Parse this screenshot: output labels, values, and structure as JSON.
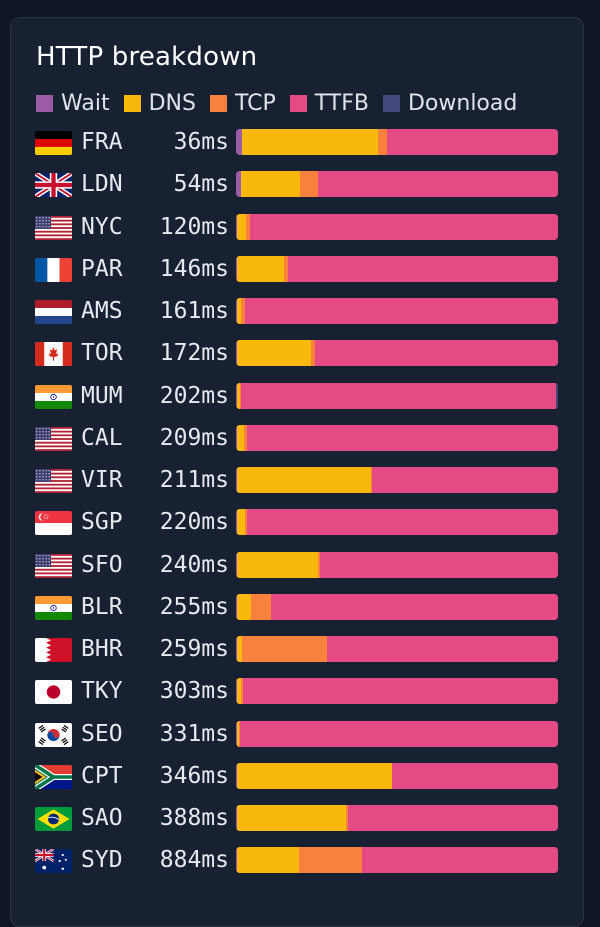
{
  "chart_data": {
    "type": "bar",
    "title": "HTTP breakdown",
    "orientation": "horizontal",
    "stacked": true,
    "normalized": true,
    "legend_position": "top",
    "series": [
      {
        "name": "Wait",
        "color": "#9b5ba6"
      },
      {
        "name": "DNS",
        "color": "#f8b80c"
      },
      {
        "name": "TCP",
        "color": "#f9813e"
      },
      {
        "name": "TTFB",
        "color": "#e44a84"
      },
      {
        "name": "Download",
        "color": "#45487f"
      }
    ],
    "rows": [
      {
        "city": "FRA",
        "time_label": "36ms",
        "total_ms": 36,
        "flag": "de",
        "shares": [
          0.02,
          0.42,
          0.03,
          0.53,
          0.0
        ]
      },
      {
        "city": "LDN",
        "time_label": "54ms",
        "total_ms": 54,
        "flag": "gb",
        "shares": [
          0.015,
          0.185,
          0.055,
          0.745,
          0.0
        ]
      },
      {
        "city": "NYC",
        "time_label": "120ms",
        "total_ms": 120,
        "flag": "us",
        "shares": [
          0.004,
          0.026,
          0.012,
          0.958,
          0.0
        ]
      },
      {
        "city": "PAR",
        "time_label": "146ms",
        "total_ms": 146,
        "flag": "fr",
        "shares": [
          0.004,
          0.146,
          0.011,
          0.839,
          0.0
        ]
      },
      {
        "city": "AMS",
        "time_label": "161ms",
        "total_ms": 161,
        "flag": "nl",
        "shares": [
          0.004,
          0.012,
          0.011,
          0.973,
          0.0
        ]
      },
      {
        "city": "TOR",
        "time_label": "172ms",
        "total_ms": 172,
        "flag": "ca",
        "shares": [
          0.004,
          0.23,
          0.012,
          0.754,
          0.0
        ]
      },
      {
        "city": "MUM",
        "time_label": "202ms",
        "total_ms": 202,
        "flag": "in",
        "shares": [
          0.004,
          0.007,
          0.005,
          0.978,
          0.006
        ]
      },
      {
        "city": "CAL",
        "time_label": "209ms",
        "total_ms": 209,
        "flag": "us",
        "shares": [
          0.004,
          0.022,
          0.008,
          0.966,
          0.0
        ]
      },
      {
        "city": "VIR",
        "time_label": "211ms",
        "total_ms": 211,
        "flag": "us",
        "shares": [
          0.004,
          0.416,
          0.003,
          0.577,
          0.0
        ]
      },
      {
        "city": "SGP",
        "time_label": "220ms",
        "total_ms": 220,
        "flag": "sg",
        "shares": [
          0.004,
          0.025,
          0.006,
          0.965,
          0.0
        ]
      },
      {
        "city": "SFO",
        "time_label": "240ms",
        "total_ms": 240,
        "flag": "us",
        "shares": [
          0.004,
          0.25,
          0.006,
          0.74,
          0.0
        ]
      },
      {
        "city": "BLR",
        "time_label": "255ms",
        "total_ms": 255,
        "flag": "in",
        "shares": [
          0.004,
          0.042,
          0.063,
          0.891,
          0.0
        ]
      },
      {
        "city": "BHR",
        "time_label": "259ms",
        "total_ms": 259,
        "flag": "bh",
        "shares": [
          0.004,
          0.016,
          0.264,
          0.716,
          0.0
        ]
      },
      {
        "city": "TKY",
        "time_label": "303ms",
        "total_ms": 303,
        "flag": "jp",
        "shares": [
          0.004,
          0.012,
          0.006,
          0.978,
          0.0
        ]
      },
      {
        "city": "SEO",
        "time_label": "331ms",
        "total_ms": 331,
        "flag": "kr",
        "shares": [
          0.004,
          0.004,
          0.004,
          0.988,
          0.0
        ]
      },
      {
        "city": "CPT",
        "time_label": "346ms",
        "total_ms": 346,
        "flag": "za",
        "shares": [
          0.003,
          0.48,
          0.003,
          0.514,
          0.0
        ]
      },
      {
        "city": "SAO",
        "time_label": "388ms",
        "total_ms": 388,
        "flag": "br",
        "shares": [
          0.003,
          0.34,
          0.006,
          0.651,
          0.0
        ]
      },
      {
        "city": "SYD",
        "time_label": "884ms",
        "total_ms": 884,
        "flag": "au",
        "shares": [
          0.003,
          0.194,
          0.193,
          0.61,
          0.0
        ]
      }
    ]
  }
}
